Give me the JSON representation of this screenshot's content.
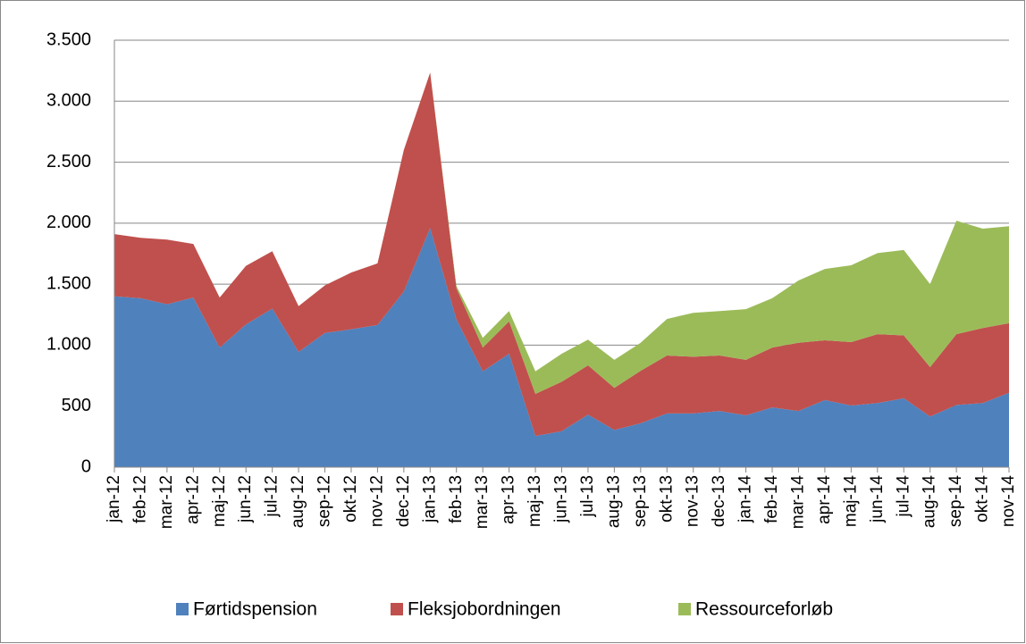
{
  "chart_data": {
    "type": "area",
    "stacked": true,
    "categories": [
      "jan-12",
      "feb-12",
      "mar-12",
      "apr-12",
      "maj-12",
      "jun-12",
      "jul-12",
      "aug-12",
      "sep-12",
      "okt-12",
      "nov-12",
      "dec-12",
      "jan-13",
      "feb-13",
      "mar-13",
      "apr-13",
      "maj-13",
      "jun-13",
      "jul-13",
      "aug-13",
      "sep-13",
      "okt-13",
      "nov-13",
      "dec-13",
      "jan-14",
      "feb-14",
      "mar-14",
      "apr-14",
      "maj-14",
      "jun-14",
      "jul-14",
      "aug-14",
      "sep-14",
      "okt-14",
      "nov-14"
    ],
    "series": [
      {
        "name": "Førtidspension",
        "color": "#4f81bd",
        "values": [
          1400,
          1385,
          1335,
          1390,
          980,
          1170,
          1300,
          945,
          1100,
          1130,
          1165,
          1440,
          1960,
          1210,
          785,
          930,
          255,
          295,
          430,
          305,
          360,
          440,
          440,
          460,
          425,
          490,
          460,
          550,
          505,
          525,
          565,
          415,
          510,
          525,
          610
        ]
      },
      {
        "name": "Fleksjobordningen",
        "color": "#c0504d",
        "values": [
          510,
          495,
          530,
          440,
          410,
          480,
          470,
          375,
          390,
          465,
          505,
          1160,
          1275,
          255,
          195,
          265,
          345,
          405,
          405,
          345,
          430,
          475,
          465,
          455,
          455,
          490,
          560,
          490,
          520,
          565,
          515,
          405,
          580,
          615,
          570
        ]
      },
      {
        "name": "Ressourceforløb",
        "color": "#9bbb59",
        "values": [
          0,
          0,
          0,
          0,
          0,
          0,
          0,
          0,
          0,
          0,
          0,
          0,
          0,
          20,
          80,
          85,
          185,
          230,
          210,
          230,
          230,
          300,
          360,
          365,
          415,
          405,
          510,
          585,
          630,
          665,
          700,
          680,
          930,
          815,
          795
        ]
      }
    ],
    "ylim": [
      0,
      3500
    ],
    "yticks": [
      0,
      500,
      {
        "value": 1000,
        "label": "1.000"
      },
      {
        "value": 1500,
        "label": "1.500"
      },
      {
        "value": 2000,
        "label": "2.000"
      },
      {
        "value": 2500,
        "label": "2.500"
      },
      {
        "value": 3000,
        "label": "3.000"
      },
      {
        "value": 3500,
        "label": "3.500"
      }
    ],
    "grid": true,
    "legend": "bottom"
  }
}
